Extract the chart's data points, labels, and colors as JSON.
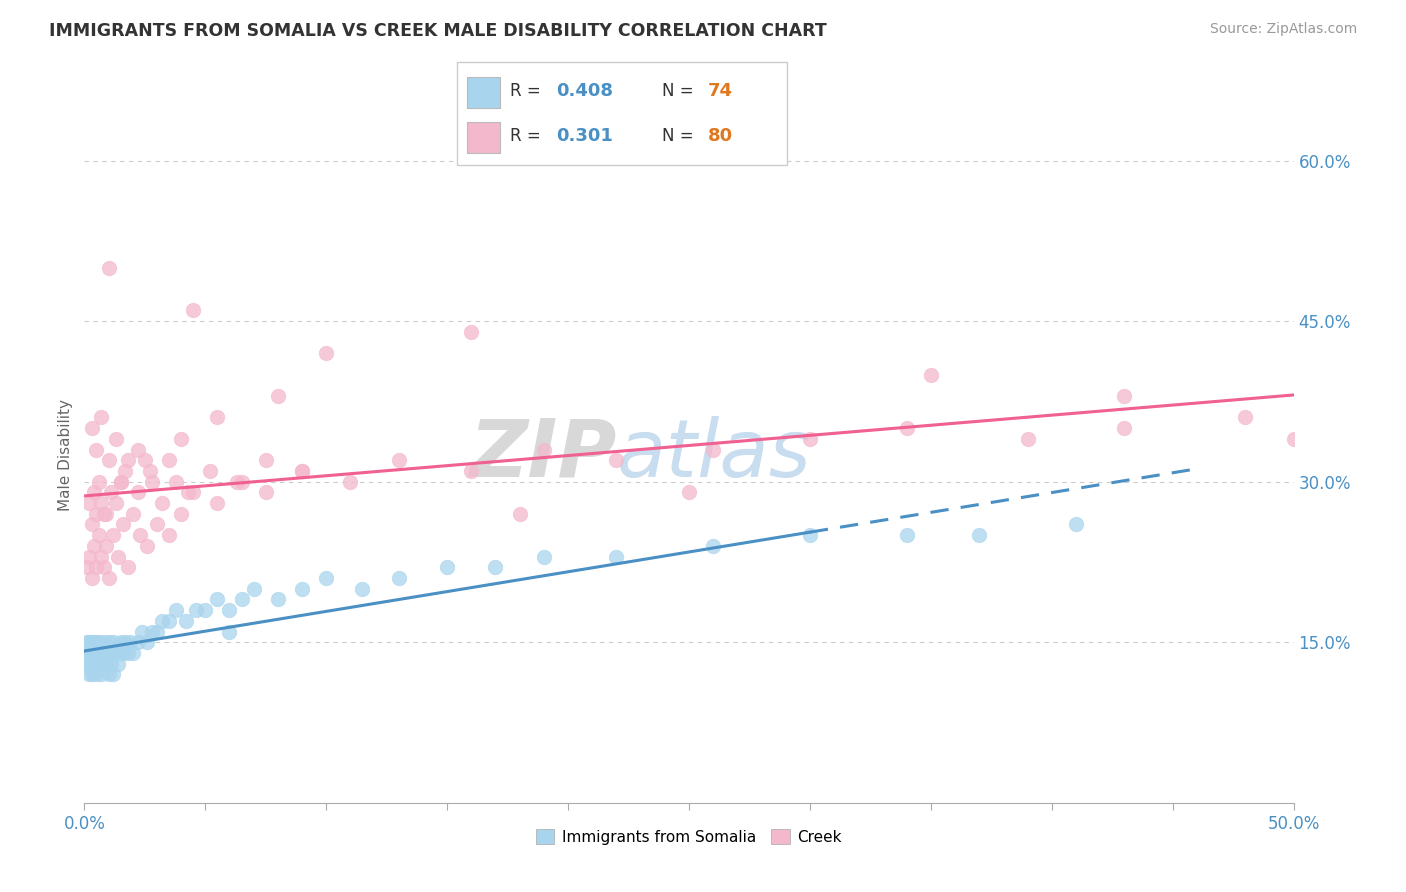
{
  "title": "IMMIGRANTS FROM SOMALIA VS CREEK MALE DISABILITY CORRELATION CHART",
  "source": "Source: ZipAtlas.com",
  "ylabel": "Male Disability",
  "xlim": [
    0.0,
    0.5
  ],
  "ylim": [
    0.0,
    0.65
  ],
  "xtick_vals": [
    0.0,
    0.05,
    0.1,
    0.15,
    0.2,
    0.25,
    0.3,
    0.35,
    0.4,
    0.45,
    0.5
  ],
  "xlabels_shown": {
    "0.0": "0.0%",
    "0.50": "50.0%"
  },
  "yticks_right": [
    0.15,
    0.3,
    0.45,
    0.6
  ],
  "yticklabels_right": [
    "15.0%",
    "30.0%",
    "45.0%",
    "60.0%"
  ],
  "color_somalia": "#a8d4ed",
  "color_creek": "#f4b8cc",
  "color_trendline_somalia": "#4a90c4",
  "color_trendline_creek": "#f06090",
  "color_axis_labels": "#4a90c4",
  "color_N": "#e07820",
  "watermark_zip": "ZIP",
  "watermark_atlas": "atlas",
  "legend_items": [
    {
      "color": "#a8d4ed",
      "r_val": "0.408",
      "n_val": "74"
    },
    {
      "color": "#f4b8cc",
      "r_val": "0.301",
      "n_val": "80"
    }
  ],
  "somalia_x": [
    0.001,
    0.001,
    0.001,
    0.002,
    0.002,
    0.002,
    0.002,
    0.003,
    0.003,
    0.003,
    0.003,
    0.004,
    0.004,
    0.004,
    0.005,
    0.005,
    0.005,
    0.005,
    0.006,
    0.006,
    0.006,
    0.007,
    0.007,
    0.007,
    0.008,
    0.008,
    0.009,
    0.009,
    0.01,
    0.01,
    0.01,
    0.011,
    0.011,
    0.012,
    0.012,
    0.013,
    0.014,
    0.015,
    0.015,
    0.016,
    0.017,
    0.018,
    0.019,
    0.02,
    0.022,
    0.024,
    0.026,
    0.028,
    0.03,
    0.032,
    0.035,
    0.038,
    0.042,
    0.046,
    0.05,
    0.055,
    0.06,
    0.065,
    0.07,
    0.08,
    0.09,
    0.1,
    0.115,
    0.13,
    0.15,
    0.17,
    0.19,
    0.22,
    0.26,
    0.3,
    0.34,
    0.37,
    0.41,
    0.06
  ],
  "somalia_y": [
    0.13,
    0.14,
    0.15,
    0.12,
    0.13,
    0.14,
    0.15,
    0.13,
    0.14,
    0.15,
    0.12,
    0.13,
    0.14,
    0.15,
    0.12,
    0.13,
    0.14,
    0.15,
    0.13,
    0.14,
    0.15,
    0.13,
    0.14,
    0.12,
    0.13,
    0.15,
    0.14,
    0.13,
    0.12,
    0.14,
    0.15,
    0.13,
    0.14,
    0.12,
    0.15,
    0.14,
    0.13,
    0.14,
    0.15,
    0.14,
    0.15,
    0.14,
    0.15,
    0.14,
    0.15,
    0.16,
    0.15,
    0.16,
    0.16,
    0.17,
    0.17,
    0.18,
    0.17,
    0.18,
    0.18,
    0.19,
    0.18,
    0.19,
    0.2,
    0.19,
    0.2,
    0.21,
    0.2,
    0.21,
    0.22,
    0.22,
    0.23,
    0.23,
    0.24,
    0.25,
    0.25,
    0.25,
    0.26,
    0.16
  ],
  "creek_x": [
    0.001,
    0.002,
    0.003,
    0.004,
    0.005,
    0.006,
    0.007,
    0.008,
    0.009,
    0.01,
    0.012,
    0.014,
    0.016,
    0.018,
    0.02,
    0.023,
    0.026,
    0.03,
    0.035,
    0.04,
    0.002,
    0.003,
    0.004,
    0.005,
    0.006,
    0.007,
    0.009,
    0.011,
    0.013,
    0.015,
    0.018,
    0.022,
    0.027,
    0.032,
    0.038,
    0.045,
    0.055,
    0.065,
    0.075,
    0.09,
    0.003,
    0.005,
    0.007,
    0.01,
    0.013,
    0.017,
    0.022,
    0.028,
    0.035,
    0.043,
    0.052,
    0.063,
    0.075,
    0.09,
    0.11,
    0.13,
    0.16,
    0.19,
    0.22,
    0.26,
    0.3,
    0.34,
    0.39,
    0.43,
    0.48,
    0.5,
    0.16,
    0.35,
    0.43,
    0.1,
    0.08,
    0.055,
    0.04,
    0.025,
    0.015,
    0.008,
    0.18,
    0.25,
    0.045,
    0.01
  ],
  "creek_y": [
    0.22,
    0.23,
    0.21,
    0.24,
    0.22,
    0.25,
    0.23,
    0.22,
    0.24,
    0.21,
    0.25,
    0.23,
    0.26,
    0.22,
    0.27,
    0.25,
    0.24,
    0.26,
    0.25,
    0.27,
    0.28,
    0.26,
    0.29,
    0.27,
    0.3,
    0.28,
    0.27,
    0.29,
    0.28,
    0.3,
    0.32,
    0.29,
    0.31,
    0.28,
    0.3,
    0.29,
    0.28,
    0.3,
    0.29,
    0.31,
    0.35,
    0.33,
    0.36,
    0.32,
    0.34,
    0.31,
    0.33,
    0.3,
    0.32,
    0.29,
    0.31,
    0.3,
    0.32,
    0.31,
    0.3,
    0.32,
    0.31,
    0.33,
    0.32,
    0.33,
    0.34,
    0.35,
    0.34,
    0.35,
    0.36,
    0.34,
    0.44,
    0.4,
    0.38,
    0.42,
    0.38,
    0.36,
    0.34,
    0.32,
    0.3,
    0.27,
    0.27,
    0.29,
    0.46,
    0.5
  ]
}
